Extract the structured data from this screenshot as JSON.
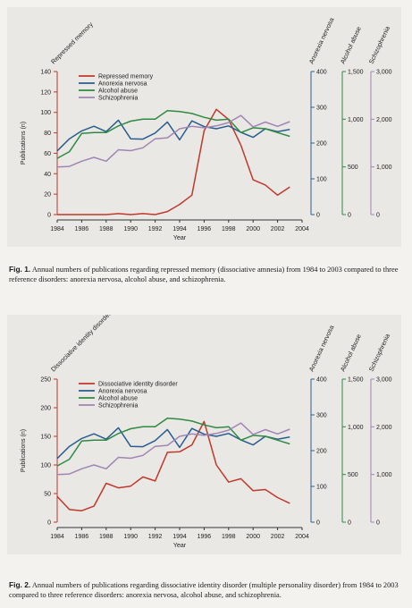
{
  "colors": {
    "primary": "#c0392b",
    "anorexia": "#2a5d8f",
    "alcohol": "#2f8a43",
    "schizo": "#a085b5"
  },
  "figures": [
    {
      "caption_label": "Fig. 1.",
      "caption_text": "Annual numbers of publications regarding repressed memory (dissociative amnesia) from 1984 to 2003 compared to three reference disorders: anorexia nervosa, alcohol abuse, and schizophrenia."
    },
    {
      "caption_label": "Fig. 2.",
      "caption_text": "Annual numbers of publications regarding dissociative identity disorder (multiple personality disorder) from 1984 to 2003 compared to three reference disorders: anorexia nervosa, alcohol abuse, and schizophrenia."
    }
  ],
  "chart_data": [
    {
      "type": "line",
      "xlabel": "Year",
      "ylabel": "Publications (n)",
      "xlim": [
        1984,
        2004
      ],
      "x_ticks": [
        "1984",
        "1986",
        "1988",
        "1990",
        "1992",
        "1994",
        "1996",
        "1998",
        "2000",
        "2002",
        "2004"
      ],
      "x": [
        1984,
        1985,
        1986,
        1987,
        1988,
        1989,
        1990,
        1991,
        1992,
        1993,
        1994,
        1995,
        1996,
        1997,
        1998,
        1999,
        2000,
        2001,
        2002,
        2003
      ],
      "legend_position": "top-left",
      "grid": false,
      "axes": [
        {
          "id": "main",
          "label": "Repressed memory",
          "ylim": [
            0,
            140
          ],
          "ticks": [
            "0",
            "20",
            "40",
            "60",
            "80",
            "100",
            "120",
            "140"
          ],
          "color": "#c0392b",
          "label_rotated": true
        },
        {
          "id": "anorexia",
          "label": "Anorexia nervosa",
          "ylim": [
            0,
            400
          ],
          "ticks": [
            "0",
            "100",
            "200",
            "300",
            "400"
          ],
          "color": "#2a5d8f"
        },
        {
          "id": "alcohol",
          "label": "Alcohol abuse",
          "ylim": [
            0,
            1500
          ],
          "ticks": [
            "0",
            "500",
            "1,000",
            "1,500"
          ],
          "color": "#2f8a43"
        },
        {
          "id": "schizo",
          "label": "Schizophrenia",
          "ylim": [
            0,
            3000
          ],
          "ticks": [
            "0",
            "1,000",
            "2,000",
            "3,000"
          ],
          "color": "#a085b5"
        }
      ],
      "series": [
        {
          "name": "Repressed memory",
          "axis": "main",
          "color": "#c0392b",
          "values": [
            0,
            0,
            0,
            0,
            0,
            1,
            0,
            1,
            0,
            3,
            10,
            19,
            82,
            103,
            93,
            68,
            34,
            29,
            19,
            27
          ]
        },
        {
          "name": "Anorexia nervosa",
          "axis": "anorexia",
          "color": "#2a5d8f",
          "values": [
            178,
            212,
            234,
            247,
            232,
            264,
            212,
            211,
            228,
            259,
            209,
            262,
            246,
            240,
            248,
            230,
            216,
            240,
            232,
            238
          ]
        },
        {
          "name": "Alcohol abuse",
          "axis": "alcohol",
          "color": "#2f8a43",
          "values": [
            590,
            660,
            850,
            860,
            860,
            930,
            980,
            1000,
            1000,
            1090,
            1080,
            1060,
            1020,
            990,
            1000,
            860,
            910,
            900,
            860,
            820
          ]
        },
        {
          "name": "Schizophrenia",
          "axis": "schizo",
          "color": "#a085b5",
          "values": [
            1000,
            1010,
            1120,
            1200,
            1120,
            1360,
            1340,
            1400,
            1590,
            1610,
            1800,
            1850,
            1820,
            1860,
            1930,
            2080,
            1840,
            1940,
            1850,
            1950
          ]
        }
      ]
    },
    {
      "type": "line",
      "xlabel": "Year",
      "ylabel": "Publications (n)",
      "xlim": [
        1984,
        2004
      ],
      "x_ticks": [
        "1984",
        "1986",
        "1988",
        "1990",
        "1992",
        "1994",
        "1996",
        "1998",
        "2000",
        "2002",
        "2004"
      ],
      "x": [
        1984,
        1985,
        1986,
        1987,
        1988,
        1989,
        1990,
        1991,
        1992,
        1993,
        1994,
        1995,
        1996,
        1997,
        1998,
        1999,
        2000,
        2001,
        2002,
        2003
      ],
      "legend_position": "top-left",
      "grid": false,
      "axes": [
        {
          "id": "main",
          "label": "Dissociative identity disorder",
          "ylim": [
            0,
            250
          ],
          "ticks": [
            "0",
            "50",
            "100",
            "150",
            "200",
            "250"
          ],
          "color": "#c0392b",
          "label_rotated": true
        },
        {
          "id": "anorexia",
          "label": "Anorexia nervosa",
          "ylim": [
            0,
            400
          ],
          "ticks": [
            "0",
            "100",
            "200",
            "300",
            "400"
          ],
          "color": "#2a5d8f"
        },
        {
          "id": "alcohol",
          "label": "Alcohol abuse",
          "ylim": [
            0,
            1500
          ],
          "ticks": [
            "0",
            "500",
            "1,000",
            "1,500"
          ],
          "color": "#2f8a43"
        },
        {
          "id": "schizo",
          "label": "Schizophrenia",
          "ylim": [
            0,
            3000
          ],
          "ticks": [
            "0",
            "1,000",
            "2,000",
            "3,000"
          ],
          "color": "#a085b5"
        }
      ],
      "series": [
        {
          "name": "Dissociative identity disorder",
          "axis": "main",
          "color": "#c0392b",
          "values": [
            45,
            22,
            20,
            28,
            68,
            60,
            63,
            79,
            72,
            122,
            123,
            135,
            176,
            100,
            70,
            76,
            55,
            57,
            43,
            33
          ]
        },
        {
          "name": "Anorexia nervosa",
          "axis": "anorexia",
          "color": "#2a5d8f",
          "values": [
            178,
            212,
            234,
            247,
            232,
            264,
            212,
            211,
            228,
            259,
            209,
            262,
            246,
            240,
            248,
            230,
            216,
            240,
            232,
            238
          ]
        },
        {
          "name": "Alcohol abuse",
          "axis": "alcohol",
          "color": "#2f8a43",
          "values": [
            590,
            660,
            850,
            860,
            860,
            930,
            980,
            1000,
            1000,
            1090,
            1080,
            1060,
            1020,
            990,
            1000,
            860,
            910,
            900,
            860,
            820
          ]
        },
        {
          "name": "Schizophrenia",
          "axis": "schizo",
          "color": "#a085b5",
          "values": [
            1000,
            1010,
            1120,
            1200,
            1120,
            1360,
            1340,
            1400,
            1590,
            1610,
            1800,
            1850,
            1820,
            1860,
            1930,
            2080,
            1840,
            1940,
            1850,
            1950
          ]
        }
      ]
    }
  ]
}
